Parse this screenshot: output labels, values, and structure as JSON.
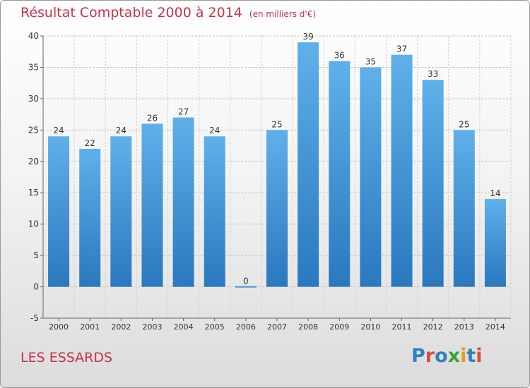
{
  "header": {
    "title": "Résultat Comptable 2000 à 2014",
    "unit": "(en milliers d'€)"
  },
  "footer": {
    "commune": "LES ESSARDS",
    "logo": "Proxiti"
  },
  "colors": {
    "title": "#c8324a",
    "bar_light": "#5fb0ea",
    "bar_dark": "#2a78bf"
  },
  "chart_data": {
    "type": "bar",
    "title": "Résultat Comptable 2000 à 2014",
    "subtitle": "(en milliers d'€)",
    "xlabel": "",
    "ylabel": "",
    "categories": [
      "2000",
      "2001",
      "2002",
      "2003",
      "2004",
      "2005",
      "2006",
      "2007",
      "2008",
      "2009",
      "2010",
      "2011",
      "2012",
      "2013",
      "2014"
    ],
    "values": [
      24,
      22,
      24,
      26,
      27,
      24,
      0,
      25,
      39,
      36,
      35,
      37,
      33,
      25,
      14
    ],
    "data_labels": [
      "24",
      "22",
      "24",
      "26",
      "27",
      "24",
      "0",
      "25",
      "39",
      "36",
      "35",
      "37",
      "33",
      "25",
      "14"
    ],
    "ylim": [
      -5,
      40
    ],
    "yticks": [
      -5,
      0,
      5,
      10,
      15,
      20,
      25,
      30,
      35,
      40
    ],
    "ytick_labels": [
      "-5",
      "0",
      "5",
      "10",
      "15",
      "20",
      "25",
      "30",
      "35",
      "40"
    ],
    "grid": true,
    "legend": "none"
  }
}
